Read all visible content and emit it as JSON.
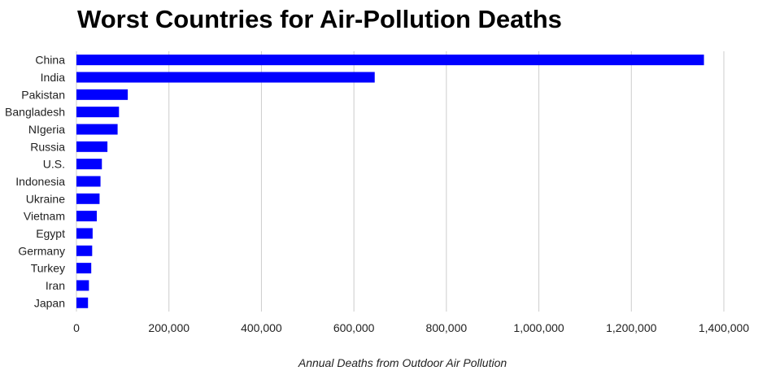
{
  "chart_data": {
    "type": "bar",
    "orientation": "horizontal",
    "title": "Worst Countries for Air-Pollution Deaths",
    "xlabel": "Annual Deaths from Outdoor Air Pollution",
    "ylabel": "",
    "categories": [
      "China",
      "India",
      "Pakistan",
      "Bangladesh",
      "NIgeria",
      "Russia",
      "U.S.",
      "Indonesia",
      "Ukraine",
      "Vietnam",
      "Egypt",
      "Germany",
      "Turkey",
      "Iran",
      "Japan"
    ],
    "values": [
      1357000,
      645000,
      111000,
      92000,
      89000,
      67000,
      55000,
      52000,
      50000,
      44000,
      35000,
      34000,
      32000,
      27000,
      25000
    ],
    "xlim": [
      0,
      1400000
    ],
    "xticks": [
      0,
      200000,
      400000,
      600000,
      800000,
      1000000,
      1200000,
      1400000
    ],
    "xtick_labels": [
      "0",
      "200,000",
      "400,000",
      "600,000",
      "800,000",
      "1,000,000",
      "1,200,000",
      "1,400,000"
    ],
    "bar_color": "#0000ff",
    "grid": true,
    "grid_color": "#cccccc",
    "legend": "none"
  }
}
